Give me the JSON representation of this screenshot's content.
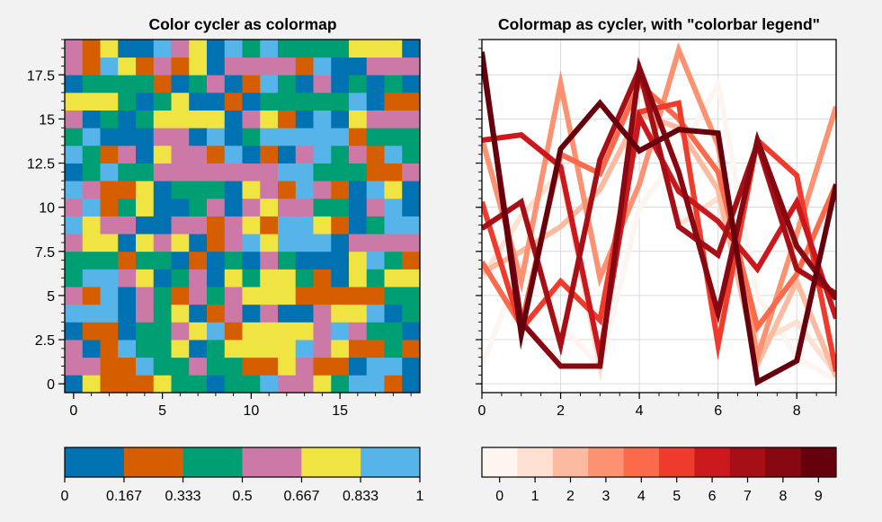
{
  "chart_data": [
    {
      "type": "heatmap",
      "title": "Color cycler as colormap",
      "nx": 20,
      "ny": 20,
      "xlim": [
        -0.5,
        19.5
      ],
      "ylim": [
        -0.5,
        19.5
      ],
      "x_ticks": [
        0,
        5,
        10,
        15
      ],
      "x_tick_labels": [
        "0",
        "5",
        "10",
        "15"
      ],
      "y_ticks": [
        0,
        2.5,
        5,
        7.5,
        10,
        12.5,
        15,
        17.5
      ],
      "y_tick_labels": [
        "0",
        "2.5",
        "5",
        "7.5",
        "10",
        "12.5",
        "15",
        "17.5"
      ],
      "palette": [
        "#0072b2",
        "#d55e00",
        "#009e73",
        "#cc79a7",
        "#f0e442",
        "#56b4e9"
      ],
      "colorbar": {
        "range": [
          0,
          1
        ],
        "tick_values": [
          0,
          0.167,
          0.333,
          0.5,
          0.667,
          0.833,
          1
        ],
        "tick_labels": [
          "0",
          "0.167",
          "0.333",
          "0.5",
          "0.667",
          "0.833",
          "1"
        ]
      },
      "grid": [
        [
          0,
          4,
          1,
          1,
          1,
          4,
          2,
          2,
          0,
          2,
          2,
          5,
          3,
          3,
          4,
          2,
          5,
          5,
          1,
          0
        ],
        [
          3,
          3,
          1,
          1,
          5,
          2,
          2,
          3,
          2,
          2,
          1,
          1,
          4,
          3,
          1,
          1,
          0,
          5,
          5,
          0
        ],
        [
          3,
          0,
          1,
          5,
          2,
          2,
          4,
          0,
          2,
          4,
          4,
          4,
          4,
          5,
          3,
          4,
          1,
          1,
          2,
          1
        ],
        [
          0,
          1,
          1,
          0,
          2,
          2,
          3,
          4,
          5,
          1,
          4,
          4,
          4,
          4,
          3,
          5,
          3,
          2,
          2,
          0
        ],
        [
          5,
          5,
          5,
          0,
          3,
          2,
          4,
          0,
          1,
          3,
          0,
          3,
          0,
          0,
          3,
          4,
          4,
          5,
          0,
          2
        ],
        [
          3,
          1,
          5,
          0,
          3,
          2,
          1,
          3,
          2,
          3,
          4,
          4,
          4,
          1,
          1,
          1,
          1,
          1,
          2,
          2
        ],
        [
          2,
          5,
          5,
          3,
          4,
          0,
          2,
          3,
          0,
          4,
          2,
          4,
          4,
          2,
          1,
          0,
          4,
          2,
          4,
          4
        ],
        [
          2,
          2,
          2,
          1,
          2,
          2,
          0,
          1,
          0,
          2,
          0,
          3,
          2,
          0,
          0,
          0,
          4,
          5,
          2,
          1
        ],
        [
          3,
          4,
          4,
          0,
          4,
          3,
          4,
          0,
          1,
          3,
          5,
          4,
          5,
          5,
          5,
          0,
          3,
          3,
          3,
          3
        ],
        [
          5,
          4,
          3,
          3,
          0,
          0,
          3,
          3,
          1,
          3,
          4,
          1,
          5,
          5,
          4,
          1,
          0,
          2,
          5,
          5
        ],
        [
          3,
          5,
          1,
          2,
          4,
          0,
          0,
          2,
          3,
          0,
          3,
          4,
          3,
          3,
          2,
          2,
          0,
          3,
          5,
          0
        ],
        [
          5,
          3,
          1,
          1,
          4,
          0,
          2,
          2,
          2,
          0,
          4,
          3,
          1,
          5,
          3,
          1,
          0,
          5,
          4,
          0
        ],
        [
          0,
          2,
          5,
          2,
          2,
          3,
          3,
          3,
          3,
          3,
          3,
          3,
          5,
          5,
          2,
          2,
          2,
          1,
          1,
          3
        ],
        [
          5,
          2,
          1,
          3,
          0,
          4,
          3,
          3,
          1,
          5,
          0,
          1,
          0,
          3,
          5,
          2,
          3,
          1,
          5,
          2
        ],
        [
          2,
          5,
          0,
          0,
          0,
          3,
          3,
          0,
          5,
          0,
          2,
          5,
          5,
          5,
          5,
          5,
          1,
          2,
          2,
          2
        ],
        [
          3,
          0,
          2,
          0,
          2,
          4,
          4,
          4,
          4,
          0,
          3,
          4,
          1,
          0,
          5,
          0,
          4,
          3,
          3,
          3
        ],
        [
          4,
          4,
          4,
          2,
          0,
          2,
          4,
          0,
          0,
          1,
          0,
          2,
          2,
          2,
          2,
          2,
          5,
          0,
          1,
          1
        ],
        [
          0,
          2,
          2,
          2,
          2,
          1,
          0,
          2,
          3,
          0,
          1,
          5,
          2,
          0,
          3,
          0,
          2,
          0,
          2,
          0
        ],
        [
          3,
          1,
          5,
          4,
          1,
          3,
          1,
          4,
          0,
          3,
          3,
          3,
          3,
          1,
          5,
          0,
          0,
          3,
          3,
          3
        ],
        [
          3,
          1,
          4,
          0,
          0,
          5,
          3,
          4,
          0,
          5,
          2,
          5,
          2,
          2,
          2,
          2,
          4,
          4,
          4,
          0
        ]
      ]
    },
    {
      "type": "line",
      "title": "Colormap as cycler, with \"colorbar legend\"",
      "x": [
        0,
        1,
        2,
        3,
        4,
        5,
        6,
        7,
        8,
        9
      ],
      "xlim": [
        0,
        9
      ],
      "ylim": [
        -0.5,
        19.5
      ],
      "x_ticks": [
        0,
        2,
        4,
        6,
        8
      ],
      "x_tick_labels": [
        "0",
        "2",
        "4",
        "6",
        "8"
      ],
      "y_ticks": [
        0,
        2.5,
        5,
        7.5,
        10,
        12.5,
        15,
        17.5
      ],
      "grid": true,
      "series": [
        {
          "color": "#fff5f0",
          "values": [
            1.0,
            6.8,
            3.3,
            1.0,
            10.0,
            13.0,
            17.0,
            5.0,
            1.5,
            0.2
          ]
        },
        {
          "color": "#fee0d2",
          "values": [
            6.0,
            9.5,
            12.0,
            1.0,
            17.5,
            9.0,
            10.5,
            2.3,
            3.5,
            0.5
          ]
        },
        {
          "color": "#fcbba1",
          "values": [
            6.3,
            7.5,
            8.9,
            11.0,
            15.3,
            14.5,
            11.0,
            1.1,
            5.8,
            0.4
          ]
        },
        {
          "color": "#fc9272",
          "values": [
            13.9,
            5.8,
            17.0,
            6.0,
            11.3,
            18.9,
            13.5,
            1.5,
            8.5,
            15.7
          ]
        },
        {
          "color": "#fb6a4a",
          "values": [
            6.9,
            3.3,
            13.0,
            11.9,
            17.0,
            15.0,
            12.0,
            3.2,
            6.2,
            11.3
          ]
        },
        {
          "color": "#ef3b2c",
          "values": [
            10.3,
            3.1,
            5.8,
            3.6,
            15.4,
            15.9,
            2.2,
            13.8,
            11.8,
            0.7
          ]
        },
        {
          "color": "#cb181d",
          "values": [
            13.8,
            14.1,
            12.3,
            1.6,
            15.1,
            10.9,
            9.2,
            6.5,
            10.3,
            3.7
          ]
        },
        {
          "color": "#a50f15",
          "values": [
            8.8,
            10.3,
            2.2,
            12.7,
            17.8,
            8.9,
            7.3,
            13.6,
            6.5,
            5.1
          ]
        },
        {
          "color": "#860811",
          "values": [
            18.5,
            3.5,
            1.0,
            1.0,
            17.9,
            12.0,
            4.0,
            13.8,
            7.8,
            4.8
          ]
        },
        {
          "color": "#67000d",
          "values": [
            18.8,
            2.8,
            13.3,
            15.9,
            13.2,
            14.4,
            14.2,
            0.1,
            1.3,
            11.3
          ]
        }
      ],
      "colorbar": {
        "tick_labels": [
          "0",
          "1",
          "2",
          "3",
          "4",
          "5",
          "6",
          "7",
          "8",
          "9"
        ]
      }
    }
  ]
}
